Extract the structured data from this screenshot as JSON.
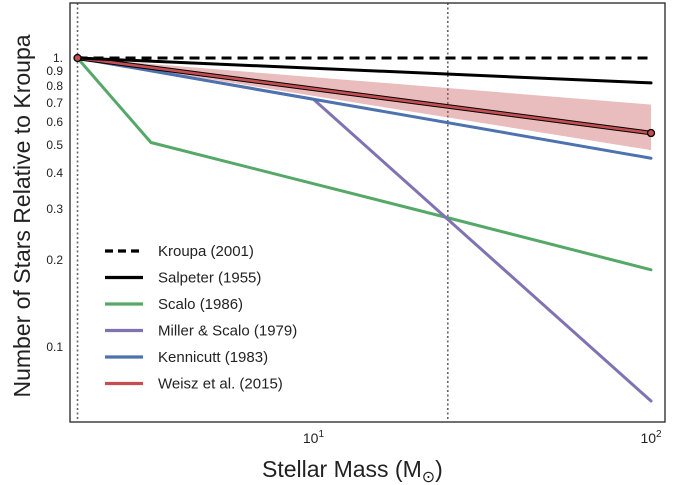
{
  "chart_data": {
    "type": "line",
    "xlabel": "Stellar Mass (M",
    "xlabel_sub": "⊙",
    "xlabel_close": ")",
    "ylabel": "Number of Stars Relative to Kroupa",
    "x_scale": "log",
    "y_scale": "log",
    "xlim": [
      1.9,
      110
    ],
    "ylim": [
      0.055,
      1.55
    ],
    "grid": false,
    "legend_position": "lower-left",
    "x_ticks": [
      {
        "value": 10,
        "base": "10",
        "exp": "1"
      },
      {
        "value": 100,
        "base": "10",
        "exp": "2"
      }
    ],
    "y_ticks": [
      {
        "value": 1.0,
        "label": "1."
      },
      {
        "value": 0.9,
        "label": "0.9"
      },
      {
        "value": 0.8,
        "label": "0.8"
      },
      {
        "value": 0.7,
        "label": "0.7"
      },
      {
        "value": 0.6,
        "label": "0.6"
      },
      {
        "value": 0.5,
        "label": "0.5"
      },
      {
        "value": 0.4,
        "label": "0.4"
      },
      {
        "value": 0.3,
        "label": "0.3"
      },
      {
        "value": 0.2,
        "label": "0.2"
      },
      {
        "value": 0.1,
        "label": "0.1"
      }
    ],
    "vlines": [
      2.0,
      25.0
    ],
    "series": [
      {
        "name": "Kroupa (2001)",
        "color": "#000000",
        "dash": true,
        "points": [
          [
            2.0,
            1.0
          ],
          [
            100.0,
            1.0
          ]
        ]
      },
      {
        "name": "Salpeter (1955)",
        "color": "#000000",
        "dash": false,
        "points": [
          [
            2.0,
            1.0
          ],
          [
            100.0,
            0.82
          ]
        ]
      },
      {
        "name": "Scalo (1986)",
        "color": "#55a868",
        "dash": false,
        "points": [
          [
            2.0,
            1.0
          ],
          [
            3.3,
            0.51
          ],
          [
            25.0,
            0.28
          ],
          [
            100.0,
            0.185
          ]
        ]
      },
      {
        "name": "Miller & Scalo (1979)",
        "color": "#8172b2",
        "dash": false,
        "points": [
          [
            2.0,
            1.0
          ],
          [
            10.0,
            0.72
          ],
          [
            100.0,
            0.065
          ]
        ]
      },
      {
        "name": "Kennicutt (1983)",
        "color": "#4c72b0",
        "dash": false,
        "points": [
          [
            2.0,
            1.0
          ],
          [
            100.0,
            0.45
          ]
        ]
      },
      {
        "name": "Weisz et al. (2015)",
        "color": "#c44e52",
        "dash": false,
        "points": [
          [
            2.0,
            1.0
          ],
          [
            100.0,
            0.55
          ]
        ],
        "band_upper": [
          [
            2.0,
            1.0
          ],
          [
            100.0,
            0.69
          ]
        ],
        "band_lower": [
          [
            2.0,
            1.0
          ],
          [
            100.0,
            0.48
          ]
        ]
      }
    ]
  }
}
